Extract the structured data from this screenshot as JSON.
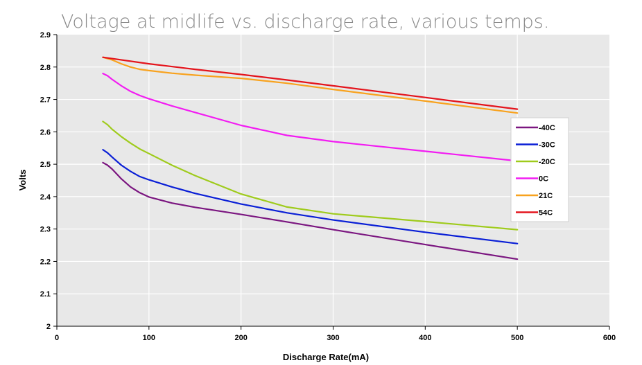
{
  "chart_data": {
    "type": "line",
    "title": "Voltage at midlife vs. discharge rate, various temps.",
    "xlabel": "Discharge Rate(mA)",
    "ylabel": "Volts",
    "xlim": [
      0,
      600
    ],
    "ylim": [
      2,
      2.9
    ],
    "xticks": [
      "0",
      "100",
      "200",
      "300",
      "400",
      "500",
      "600"
    ],
    "yticks": [
      "2",
      "2.1",
      "2.2",
      "2.3",
      "2.4",
      "2.5",
      "2.6",
      "2.7",
      "2.8",
      "2.9"
    ],
    "grid": true,
    "legend_position": "right",
    "series": [
      {
        "name": "-40C",
        "color": "#7b1680",
        "x": [
          50,
          55,
          60,
          70,
          80,
          90,
          100,
          125,
          150,
          200,
          250,
          300,
          400,
          500
        ],
        "y": [
          2.505,
          2.497,
          2.485,
          2.455,
          2.43,
          2.412,
          2.399,
          2.38,
          2.367,
          2.345,
          2.322,
          2.298,
          2.252,
          2.207
        ]
      },
      {
        "name": "-30C",
        "color": "#0a1fd6",
        "x": [
          50,
          55,
          60,
          70,
          80,
          90,
          100,
          125,
          150,
          200,
          250,
          300,
          400,
          500
        ],
        "y": [
          2.545,
          2.535,
          2.522,
          2.497,
          2.478,
          2.462,
          2.452,
          2.43,
          2.41,
          2.377,
          2.35,
          2.328,
          2.29,
          2.255
        ]
      },
      {
        "name": "-20C",
        "color": "#9fcb1c",
        "x": [
          50,
          55,
          60,
          70,
          80,
          90,
          100,
          125,
          150,
          200,
          250,
          300,
          400,
          500
        ],
        "y": [
          2.632,
          2.622,
          2.608,
          2.585,
          2.565,
          2.547,
          2.533,
          2.497,
          2.465,
          2.408,
          2.368,
          2.347,
          2.323,
          2.298
        ]
      },
      {
        "name": "0C",
        "color": "#f21cf2",
        "x": [
          50,
          55,
          60,
          70,
          80,
          90,
          100,
          125,
          150,
          200,
          250,
          300,
          400,
          500
        ],
        "y": [
          2.78,
          2.773,
          2.762,
          2.742,
          2.725,
          2.712,
          2.702,
          2.68,
          2.66,
          2.62,
          2.589,
          2.57,
          2.54,
          2.51
        ]
      },
      {
        "name": "21C",
        "color": "#f8a21e",
        "x": [
          50,
          60,
          70,
          80,
          90,
          100,
          125,
          150,
          200,
          250,
          300,
          400,
          500
        ],
        "y": [
          2.83,
          2.822,
          2.81,
          2.8,
          2.793,
          2.789,
          2.781,
          2.775,
          2.765,
          2.75,
          2.731,
          2.695,
          2.658
        ]
      },
      {
        "name": "54C",
        "color": "#e4141c",
        "x": [
          50,
          100,
          150,
          200,
          250,
          300,
          400,
          500
        ],
        "y": [
          2.83,
          2.81,
          2.793,
          2.777,
          2.76,
          2.742,
          2.706,
          2.67
        ]
      }
    ]
  }
}
